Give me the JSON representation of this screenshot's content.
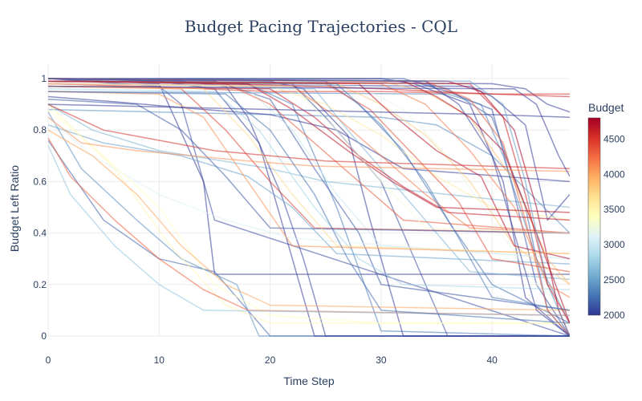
{
  "chart_data": {
    "type": "line",
    "title": "Budget Pacing Trajectories - CQL",
    "xlabel": "Time Step",
    "ylabel": "Budget Left Ratio",
    "xlim": [
      0,
      47
    ],
    "ylim": [
      0,
      1
    ],
    "x_ticks": [
      "0",
      "10",
      "20",
      "30",
      "40"
    ],
    "x_tick_values": [
      0,
      10,
      20,
      30,
      40
    ],
    "y_ticks": [
      "0",
      "0.2",
      "0.4",
      "0.6",
      "0.8",
      "1"
    ],
    "y_tick_values": [
      0,
      0.2,
      0.4,
      0.6,
      0.8,
      1
    ],
    "grid": true,
    "color_scale": "RdYlBu_r",
    "colorbar": {
      "title": "Budget",
      "range": [
        2000,
        4800
      ],
      "ticks": [
        "2000",
        "2500",
        "3000",
        "3500",
        "4000",
        "4500"
      ],
      "tick_values": [
        2000,
        2500,
        3000,
        3500,
        4000,
        4500
      ],
      "colors": [
        "#313695",
        "#4575b4",
        "#74add1",
        "#abd9e9",
        "#e0f3f8",
        "#ffffbf",
        "#fee090",
        "#fdae61",
        "#f46d43",
        "#d73027",
        "#a50026"
      ]
    },
    "series": [
      {
        "budget": 2100,
        "x": [
          0,
          10,
          12,
          15,
          47
        ],
        "y": [
          1.0,
          0.97,
          0.9,
          0.45,
          0.0
        ]
      },
      {
        "budget": 2000,
        "x": [
          0,
          10,
          14,
          15,
          20,
          47
        ],
        "y": [
          1.0,
          0.98,
          0.6,
          0.24,
          0.24,
          0.24
        ]
      },
      {
        "budget": 2200,
        "x": [
          0,
          5,
          10,
          15,
          20,
          47
        ],
        "y": [
          0.76,
          0.45,
          0.3,
          0.25,
          0.0,
          0.0
        ]
      },
      {
        "budget": 2400,
        "x": [
          0,
          3,
          8,
          12,
          17,
          19,
          47
        ],
        "y": [
          0.87,
          0.65,
          0.45,
          0.3,
          0.2,
          0.0,
          0.0
        ]
      },
      {
        "budget": 2600,
        "x": [
          0,
          4,
          10,
          20,
          25,
          47
        ],
        "y": [
          0.9,
          0.8,
          0.72,
          0.65,
          0.6,
          0.5
        ]
      },
      {
        "budget": 2000,
        "x": [
          0,
          10,
          15,
          19,
          22,
          24,
          47
        ],
        "y": [
          1.0,
          0.99,
          0.96,
          0.75,
          0.3,
          0.0,
          0.0
        ]
      },
      {
        "budget": 2050,
        "x": [
          0,
          12,
          16,
          18,
          21,
          23,
          25,
          47
        ],
        "y": [
          1.0,
          0.99,
          0.97,
          0.85,
          0.55,
          0.3,
          0.0,
          0.0
        ]
      },
      {
        "budget": 2150,
        "x": [
          0,
          15,
          20,
          24,
          28,
          30,
          47
        ],
        "y": [
          1.0,
          0.99,
          0.92,
          0.65,
          0.4,
          0.2,
          0.1
        ]
      },
      {
        "budget": 2300,
        "x": [
          0,
          18,
          22,
          26,
          30,
          47
        ],
        "y": [
          0.99,
          0.98,
          0.9,
          0.5,
          0.02,
          0.0
        ]
      },
      {
        "budget": 2000,
        "x": [
          0,
          20,
          23,
          27,
          29,
          32,
          47
        ],
        "y": [
          1.0,
          0.99,
          0.96,
          0.78,
          0.45,
          0.0,
          0.0
        ]
      },
      {
        "budget": 2100,
        "x": [
          0,
          22,
          25,
          30,
          34,
          36,
          47
        ],
        "y": [
          0.99,
          0.98,
          0.85,
          0.6,
          0.2,
          0.0,
          0.0
        ]
      },
      {
        "budget": 2250,
        "x": [
          0,
          25,
          28,
          32,
          36,
          40,
          47
        ],
        "y": [
          1.0,
          0.99,
          0.9,
          0.72,
          0.45,
          0.2,
          0.05
        ]
      },
      {
        "budget": 2000,
        "x": [
          0,
          30,
          33,
          38,
          41,
          43,
          47
        ],
        "y": [
          1.0,
          1.0,
          0.98,
          0.9,
          0.6,
          0.15,
          0.0
        ]
      },
      {
        "budget": 2100,
        "x": [
          0,
          32,
          36,
          40,
          42,
          44,
          47
        ],
        "y": [
          1.0,
          1.0,
          0.95,
          0.88,
          0.55,
          0.2,
          0.0
        ]
      },
      {
        "budget": 2200,
        "x": [
          0,
          33,
          36,
          40,
          43,
          45,
          47
        ],
        "y": [
          1.0,
          0.99,
          0.96,
          0.85,
          0.5,
          0.1,
          0.0
        ]
      },
      {
        "budget": 2000,
        "x": [
          0,
          38,
          40,
          43,
          45,
          47
        ],
        "y": [
          0.98,
          0.97,
          0.93,
          0.82,
          0.45,
          0.55
        ]
      },
      {
        "budget": 2000,
        "x": [
          0,
          40,
          43,
          45,
          47
        ],
        "y": [
          0.99,
          0.98,
          0.96,
          0.9,
          0.87
        ]
      },
      {
        "budget": 2350,
        "x": [
          0,
          36,
          39,
          41,
          44,
          47
        ],
        "y": [
          0.95,
          0.94,
          0.9,
          0.7,
          0.3,
          0.05
        ]
      },
      {
        "budget": 2400,
        "x": [
          0,
          10,
          20,
          30,
          35,
          40,
          47
        ],
        "y": [
          0.88,
          0.87,
          0.86,
          0.85,
          0.82,
          0.7,
          0.4
        ]
      },
      {
        "budget": 2500,
        "x": [
          0,
          5,
          12,
          18,
          22,
          26,
          47
        ],
        "y": [
          0.82,
          0.75,
          0.7,
          0.62,
          0.5,
          0.32,
          0.28
        ]
      },
      {
        "budget": 2000,
        "x": [
          0,
          6,
          14,
          20,
          26,
          32,
          47
        ],
        "y": [
          0.93,
          0.91,
          0.88,
          0.86,
          0.8,
          0.65,
          0.6
        ]
      },
      {
        "budget": 2600,
        "x": [
          0,
          24,
          27,
          31,
          35,
          38,
          47
        ],
        "y": [
          0.97,
          0.96,
          0.8,
          0.6,
          0.4,
          0.25,
          0.22
        ]
      },
      {
        "budget": 2800,
        "x": [
          0,
          15,
          19,
          24,
          28,
          32,
          47
        ],
        "y": [
          0.96,
          0.95,
          0.8,
          0.5,
          0.3,
          0.2,
          0.18
        ]
      },
      {
        "budget": 3000,
        "x": [
          0,
          18,
          22,
          26,
          30,
          47
        ],
        "y": [
          0.97,
          0.96,
          0.8,
          0.55,
          0.35,
          0.3
        ]
      },
      {
        "budget": 3100,
        "x": [
          0,
          4,
          10,
          16,
          22,
          47
        ],
        "y": [
          0.85,
          0.7,
          0.55,
          0.45,
          0.38,
          0.3
        ]
      },
      {
        "budget": 3200,
        "x": [
          0,
          28,
          32,
          36,
          40,
          44,
          47
        ],
        "y": [
          0.98,
          0.97,
          0.88,
          0.7,
          0.45,
          0.2,
          0.1
        ]
      },
      {
        "budget": 3400,
        "x": [
          0,
          5,
          10,
          15,
          20,
          30,
          47
        ],
        "y": [
          0.88,
          0.7,
          0.5,
          0.2,
          0.08,
          0.05,
          0.05
        ]
      },
      {
        "budget": 3500,
        "x": [
          0,
          6,
          11,
          16,
          20,
          47
        ],
        "y": [
          0.9,
          0.65,
          0.35,
          0.12,
          0.05,
          0.05
        ]
      },
      {
        "budget": 3600,
        "x": [
          0,
          20,
          25,
          30,
          35,
          40,
          47
        ],
        "y": [
          0.98,
          0.97,
          0.9,
          0.78,
          0.62,
          0.5,
          0.45
        ]
      },
      {
        "budget": 3800,
        "x": [
          0,
          26,
          30,
          34,
          38,
          42,
          47
        ],
        "y": [
          0.99,
          0.98,
          0.9,
          0.78,
          0.6,
          0.35,
          0.2
        ]
      },
      {
        "budget": 3900,
        "x": [
          0,
          30,
          34,
          38,
          42,
          45,
          47
        ],
        "y": [
          1.0,
          0.99,
          0.95,
          0.85,
          0.6,
          0.3,
          0.2
        ]
      },
      {
        "budget": 4000,
        "x": [
          0,
          4,
          8,
          12,
          16,
          20,
          47
        ],
        "y": [
          0.8,
          0.7,
          0.55,
          0.35,
          0.2,
          0.12,
          0.1
        ]
      },
      {
        "budget": 4100,
        "x": [
          0,
          10,
          14,
          18,
          22,
          47
        ],
        "y": [
          0.95,
          0.94,
          0.85,
          0.6,
          0.35,
          0.32
        ]
      },
      {
        "budget": 4200,
        "x": [
          0,
          22,
          26,
          30,
          34,
          38,
          47
        ],
        "y": [
          0.98,
          0.97,
          0.85,
          0.7,
          0.55,
          0.42,
          0.4
        ]
      },
      {
        "budget": 4300,
        "x": [
          0,
          34,
          38,
          41,
          43,
          45,
          47
        ],
        "y": [
          1.0,
          0.99,
          0.92,
          0.75,
          0.45,
          0.1,
          0.0
        ]
      },
      {
        "budget": 4350,
        "x": [
          0,
          16,
          20,
          24,
          28,
          32,
          47
        ],
        "y": [
          0.99,
          0.98,
          0.9,
          0.75,
          0.6,
          0.45,
          0.4
        ]
      },
      {
        "budget": 4500,
        "x": [
          0,
          8,
          14,
          20,
          30,
          40,
          47
        ],
        "y": [
          0.98,
          0.97,
          0.96,
          0.95,
          0.95,
          0.94,
          0.94
        ]
      },
      {
        "budget": 4600,
        "x": [
          0,
          10,
          20,
          30,
          40,
          47
        ],
        "y": [
          0.99,
          0.985,
          0.975,
          0.96,
          0.94,
          0.93
        ]
      },
      {
        "budget": 4700,
        "x": [
          0,
          28,
          31,
          35,
          39,
          42,
          47
        ],
        "y": [
          0.99,
          0.98,
          0.86,
          0.72,
          0.62,
          0.35,
          0.3
        ]
      },
      {
        "budget": 4750,
        "x": [
          0,
          32,
          35,
          38,
          41,
          44,
          47
        ],
        "y": [
          1.0,
          0.99,
          0.93,
          0.85,
          0.72,
          0.4,
          0.05
        ]
      },
      {
        "budget": 4800,
        "x": [
          0,
          36,
          39,
          42,
          44,
          46,
          47
        ],
        "y": [
          1.0,
          0.99,
          0.95,
          0.8,
          0.5,
          0.1,
          0.0
        ]
      },
      {
        "budget": 4650,
        "x": [
          0,
          20,
          24,
          28,
          32,
          36,
          47
        ],
        "y": [
          0.97,
          0.96,
          0.85,
          0.7,
          0.58,
          0.48,
          0.45
        ]
      },
      {
        "budget": 4550,
        "x": [
          0,
          5,
          10,
          15,
          20,
          25,
          47
        ],
        "y": [
          0.9,
          0.8,
          0.76,
          0.72,
          0.7,
          0.68,
          0.65
        ]
      },
      {
        "budget": 4450,
        "x": [
          0,
          12,
          16,
          20,
          24,
          47
        ],
        "y": [
          0.97,
          0.96,
          0.8,
          0.6,
          0.42,
          0.4
        ]
      },
      {
        "budget": 4300,
        "x": [
          0,
          2,
          6,
          10,
          14,
          18,
          47
        ],
        "y": [
          0.77,
          0.62,
          0.45,
          0.3,
          0.18,
          0.1,
          0.08
        ]
      },
      {
        "budget": 4400,
        "x": [
          0,
          25,
          29,
          33,
          37,
          40,
          47
        ],
        "y": [
          0.99,
          0.98,
          0.88,
          0.7,
          0.52,
          0.3,
          0.25
        ]
      },
      {
        "budget": 4200,
        "x": [
          0,
          30,
          34,
          38,
          42,
          45,
          47
        ],
        "y": [
          0.99,
          0.98,
          0.9,
          0.72,
          0.5,
          0.2,
          0.15
        ]
      },
      {
        "budget": 4700,
        "x": [
          0,
          18,
          22,
          27,
          31,
          35,
          47
        ],
        "y": [
          0.99,
          0.98,
          0.88,
          0.72,
          0.6,
          0.5,
          0.48
        ]
      },
      {
        "budget": 2300,
        "x": [
          0,
          26,
          30,
          34,
          37,
          40,
          47
        ],
        "y": [
          0.99,
          0.98,
          0.82,
          0.6,
          0.38,
          0.15,
          0.1
        ]
      },
      {
        "budget": 2150,
        "x": [
          0,
          8,
          12,
          16,
          20,
          47
        ],
        "y": [
          0.92,
          0.9,
          0.8,
          0.62,
          0.42,
          0.4
        ]
      },
      {
        "budget": 2050,
        "x": [
          0,
          34,
          37,
          40,
          42,
          44,
          47
        ],
        "y": [
          1.0,
          0.99,
          0.9,
          0.7,
          0.4,
          0.1,
          0.0
        ]
      },
      {
        "budget": 2000,
        "x": [
          0,
          10,
          20,
          30,
          40,
          47
        ],
        "y": [
          0.9,
          0.89,
          0.88,
          0.87,
          0.86,
          0.85
        ]
      },
      {
        "budget": 3300,
        "x": [
          0,
          22,
          26,
          30,
          34,
          47
        ],
        "y": [
          0.98,
          0.97,
          0.8,
          0.6,
          0.42,
          0.4
        ]
      },
      {
        "budget": 3700,
        "x": [
          0,
          14,
          18,
          22,
          26,
          47
        ],
        "y": [
          0.97,
          0.96,
          0.78,
          0.55,
          0.35,
          0.32
        ]
      },
      {
        "budget": 2700,
        "x": [
          0,
          2,
          6,
          10,
          14,
          47
        ],
        "y": [
          0.74,
          0.55,
          0.35,
          0.2,
          0.1,
          0.08
        ]
      },
      {
        "budget": 2450,
        "x": [
          0,
          38,
          41,
          43,
          45,
          47
        ],
        "y": [
          1.0,
          0.99,
          0.9,
          0.6,
          0.2,
          0.0
        ]
      },
      {
        "budget": 4600,
        "x": [
          0,
          38,
          41,
          43,
          45,
          47
        ],
        "y": [
          0.99,
          0.98,
          0.85,
          0.55,
          0.2,
          0.05
        ]
      },
      {
        "budget": 4100,
        "x": [
          0,
          3,
          8,
          13,
          18,
          24,
          47
        ],
        "y": [
          0.85,
          0.75,
          0.72,
          0.7,
          0.68,
          0.66,
          0.64
        ]
      },
      {
        "budget": 2250,
        "x": [
          0,
          16,
          20,
          24,
          27,
          30,
          47
        ],
        "y": [
          0.95,
          0.94,
          0.8,
          0.55,
          0.3,
          0.1,
          0.05
        ]
      },
      {
        "budget": 2000,
        "x": [
          0,
          42,
          44,
          46,
          47
        ],
        "y": [
          0.97,
          0.96,
          0.9,
          0.7,
          0.62
        ]
      }
    ]
  }
}
